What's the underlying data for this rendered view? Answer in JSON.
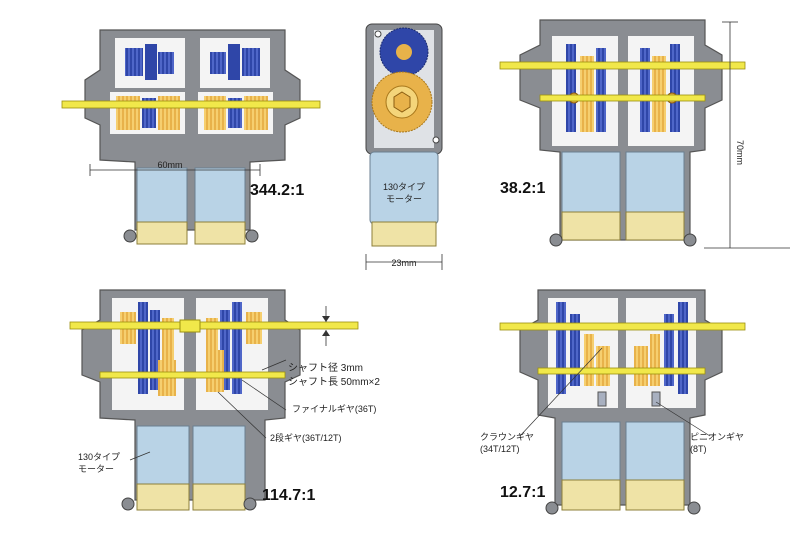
{
  "colors": {
    "housing": "#8a8d92",
    "housing_dark": "#6b6e73",
    "cavity": "#f4f4f4",
    "gear_blue": "#2f46a8",
    "gear_orange": "#e8b24a",
    "shaft_yellow": "#f1e84a",
    "motor_body": "#b9d3e6",
    "motor_cap": "#efe3a6"
  },
  "panels": {
    "top_left": {
      "ratio": "344.2:1",
      "width_label": "60mm"
    },
    "top_center": {
      "motor_label_line1": "130タイプ",
      "motor_label_line2": "モーター",
      "width_label": "23mm"
    },
    "top_right": {
      "ratio": "38.2:1",
      "height_label": "70mm"
    },
    "bottom_left": {
      "ratio": "114.7:1",
      "shaft_diameter": "シャフト径 3mm",
      "shaft_length": "シャフト長 50mm×2",
      "final_gear": "ファイナルギヤ(36T)",
      "two_stage_gear": "2段ギヤ(36T/12T)",
      "motor_label_line1": "130タイプ",
      "motor_label_line2": "モーター"
    },
    "bottom_right": {
      "ratio": "12.7:1",
      "crown_gear_line1": "クラウンギヤ",
      "crown_gear_line2": "(34T/12T)",
      "pinion_gear_line1": "ピニオンギヤ",
      "pinion_gear_line2": "(8T)"
    }
  }
}
